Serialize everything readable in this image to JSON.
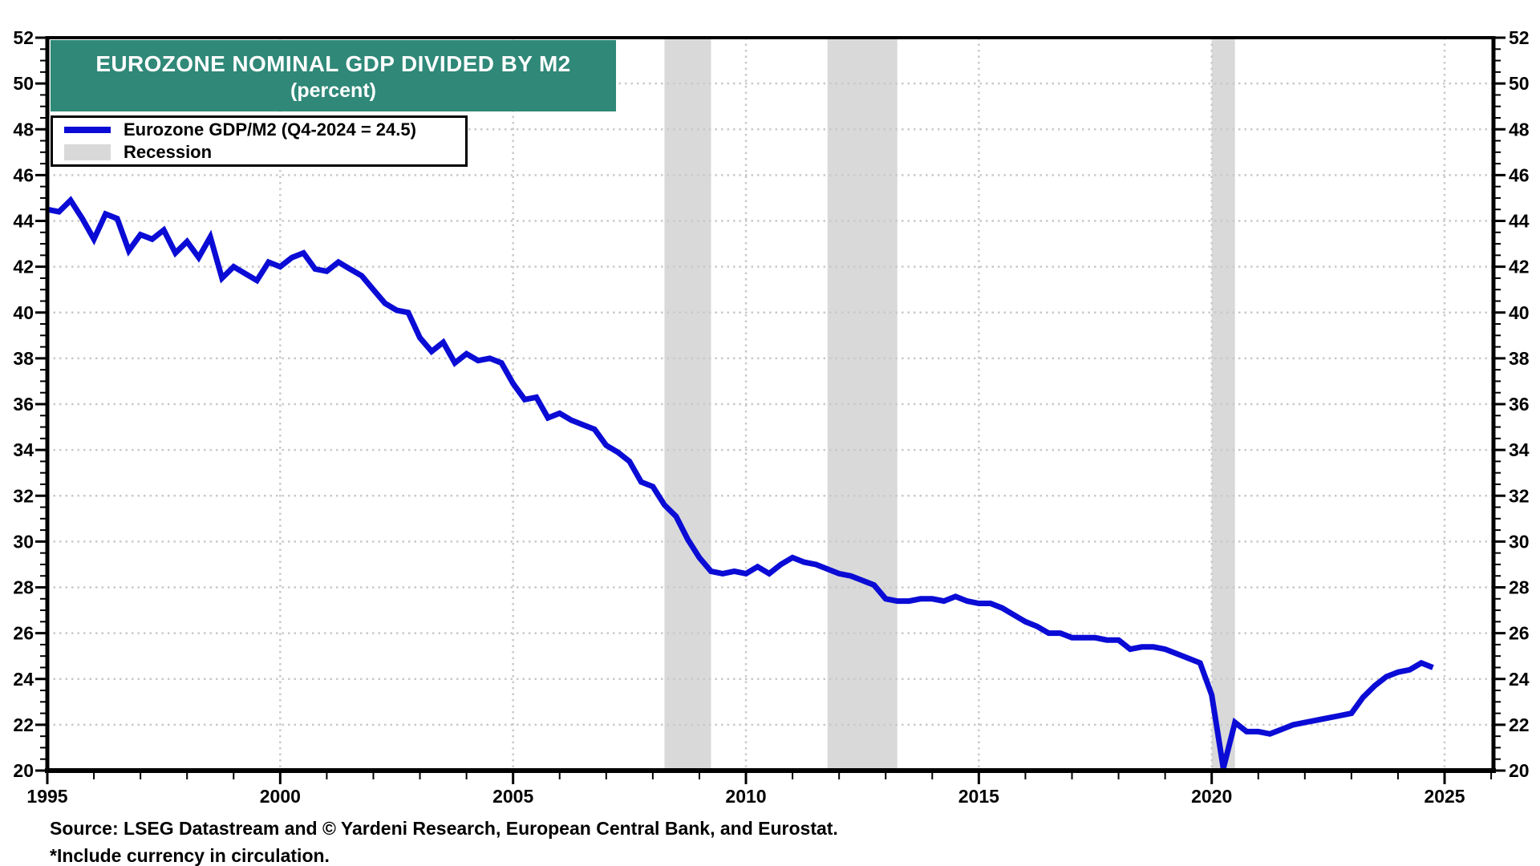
{
  "title_box": {
    "line1": "EUROZONE NOMINAL GDP DIVIDED BY M2",
    "line2": "(percent)",
    "bg_color": "#2F8878",
    "text_color": "#FFFFFF"
  },
  "legend": {
    "series_label": "Eurozone GDP/M2 (Q4-2024 = 24.5)",
    "recession_label": "Recession",
    "series_color": "#0B0BD6",
    "recession_color": "#D9D9D9"
  },
  "footer": {
    "source": "Source: LSEG Datastream and © Yardeni Research, European Central Bank, and Eurostat.",
    "note": "*Include currency in circulation."
  },
  "chart_data": {
    "type": "line",
    "title": "EUROZONE NOMINAL GDP DIVIDED BY M2",
    "subtitle": "(percent)",
    "xlabel": "",
    "ylabel": "percent",
    "xlim": [
      1995,
      2026.05
    ],
    "ylim": [
      20,
      52
    ],
    "x_ticks_labeled": [
      1995,
      2000,
      2005,
      2010,
      2015,
      2020,
      2025
    ],
    "x_minor_tick_step": 1,
    "y_ticks_labeled": [
      20,
      22,
      24,
      26,
      28,
      30,
      32,
      34,
      36,
      38,
      40,
      42,
      44,
      46,
      48,
      50,
      52
    ],
    "y_minor_tick_step": 0.5,
    "y_axis_sides": [
      "left",
      "right"
    ],
    "grid_style": "dotted",
    "grid_color": "#C9C9C9",
    "axis_color": "#000000",
    "line_color": "#0B0BD6",
    "recession_color": "#D9D9D9",
    "recession_bands": [
      [
        2008.25,
        2009.25
      ],
      [
        2011.75,
        2013.25
      ],
      [
        2020.0,
        2020.5
      ]
    ],
    "series": [
      {
        "name": "Eurozone GDP/M2",
        "legend_note": "Q4-2024 = 24.5",
        "period": "quarterly",
        "start_year": 1995,
        "start_quarter": 1,
        "end_label": "Q4-2024",
        "last_value": 24.5,
        "values": [
          44.5,
          44.4,
          44.9,
          44.1,
          43.2,
          44.3,
          44.1,
          42.7,
          43.4,
          43.2,
          43.6,
          42.6,
          43.1,
          42.4,
          43.3,
          41.5,
          42.0,
          41.7,
          41.4,
          42.2,
          42.0,
          42.4,
          42.6,
          41.9,
          41.8,
          42.2,
          41.9,
          41.6,
          41.0,
          40.4,
          40.1,
          40.0,
          38.9,
          38.3,
          38.7,
          37.8,
          38.2,
          37.9,
          38.0,
          37.8,
          36.9,
          36.2,
          36.3,
          35.4,
          35.6,
          35.3,
          35.1,
          34.9,
          34.2,
          33.9,
          33.5,
          32.6,
          32.4,
          31.6,
          31.1,
          30.1,
          29.3,
          28.7,
          28.6,
          28.7,
          28.6,
          28.9,
          28.6,
          29.0,
          29.3,
          29.1,
          29.0,
          28.8,
          28.6,
          28.5,
          28.3,
          28.1,
          27.5,
          27.4,
          27.4,
          27.5,
          27.5,
          27.4,
          27.6,
          27.4,
          27.3,
          27.3,
          27.1,
          26.8,
          26.5,
          26.3,
          26.0,
          26.0,
          25.8,
          25.8,
          25.8,
          25.7,
          25.7,
          25.3,
          25.4,
          25.4,
          25.3,
          25.1,
          24.9,
          24.7,
          23.3,
          20.1,
          22.1,
          21.7,
          21.7,
          21.6,
          21.8,
          22.0,
          22.1,
          22.2,
          22.3,
          22.4,
          22.5,
          23.2,
          23.7,
          24.1,
          24.3,
          24.4,
          24.7,
          24.5
        ]
      }
    ]
  }
}
